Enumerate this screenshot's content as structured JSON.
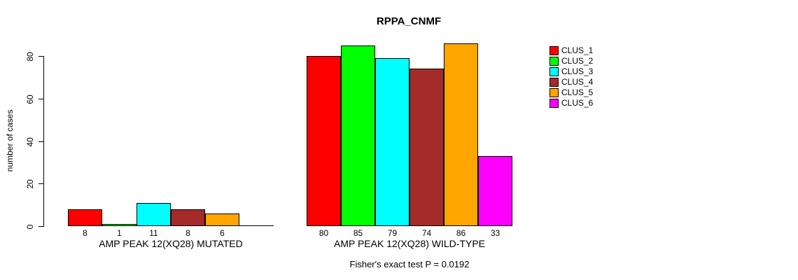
{
  "chart_data": {
    "type": "bar",
    "title": "RPPA_CNMF",
    "ylabel": "number of cases",
    "xlabel": "",
    "ylim": [
      0,
      80
    ],
    "yticks": [
      0,
      20,
      40,
      60,
      80
    ],
    "grid": false,
    "legend": {
      "position": "right",
      "entries": [
        {
          "label": "CLUS_1",
          "color": "#FF0000"
        },
        {
          "label": "CLUS_2",
          "color": "#00FF00"
        },
        {
          "label": "CLUS_3",
          "color": "#00FFFF"
        },
        {
          "label": "CLUS_4",
          "color": "#A52A2A"
        },
        {
          "label": "CLUS_5",
          "color": "#FFA500"
        },
        {
          "label": "CLUS_6",
          "color": "#FF00FF"
        }
      ]
    },
    "categories": [
      "CLUS_1",
      "CLUS_2",
      "CLUS_3",
      "CLUS_4",
      "CLUS_5",
      "CLUS_6"
    ],
    "groups": [
      {
        "label": "AMP PEAK 12(XQ28) MUTATED",
        "values": [
          8,
          1,
          11,
          8,
          6,
          0
        ],
        "value_labels": [
          "8",
          "1",
          "11",
          "8",
          "6",
          ""
        ]
      },
      {
        "label": "AMP PEAK 12(XQ28) WILD-TYPE",
        "values": [
          80,
          85,
          79,
          74,
          86,
          33
        ],
        "value_labels": [
          "80",
          "85",
          "79",
          "74",
          "86",
          "33"
        ]
      }
    ],
    "note": "Fisher's exact test P = 0.0192"
  },
  "colors": {
    "background": "#FFFFFF",
    "axis": "#000000",
    "text": "#000000"
  }
}
